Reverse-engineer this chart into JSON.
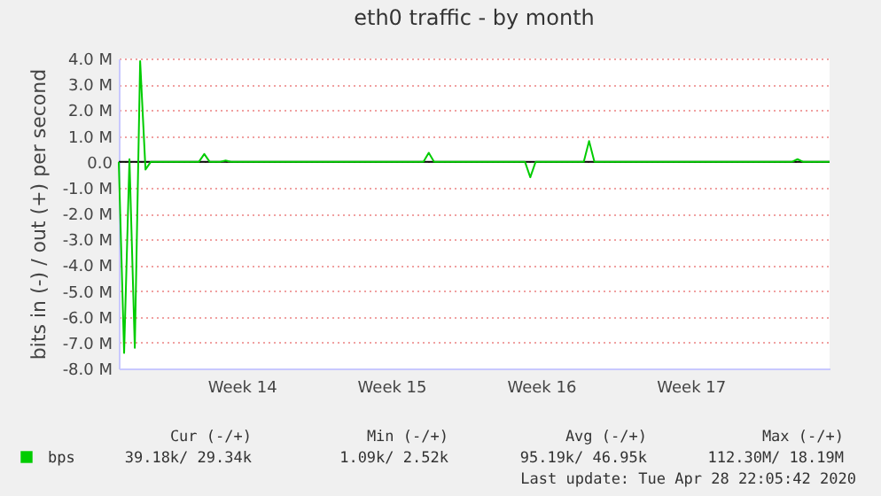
{
  "chart_data": {
    "type": "line",
    "title": "eth0 traffic - by month",
    "ylabel": "bits in (-) / out (+) per second",
    "categories": [
      null,
      null,
      null,
      null,
      null,
      null,
      null,
      null,
      null,
      null,
      null,
      null,
      null,
      null,
      null,
      null,
      null,
      null,
      null,
      null,
      null,
      null,
      null,
      "Week 14",
      null,
      null,
      null,
      null,
      null,
      null,
      null,
      null,
      null,
      null,
      null,
      null,
      null,
      null,
      null,
      null,
      null,
      null,
      null,
      null,
      null,
      null,
      null,
      null,
      null,
      null,
      null,
      "Week 15",
      null,
      null,
      null,
      null,
      null,
      null,
      null,
      null,
      null,
      null,
      null,
      null,
      null,
      null,
      null,
      null,
      null,
      null,
      null,
      null,
      null,
      null,
      null,
      null,
      null,
      null,
      null,
      "Week 16",
      null,
      null,
      null,
      null,
      null,
      null,
      null,
      null,
      null,
      null,
      null,
      null,
      null,
      null,
      null,
      null,
      null,
      null,
      null,
      null,
      null,
      null,
      null,
      null,
      null,
      null,
      null,
      "Week 17",
      null,
      null,
      null,
      null,
      null,
      null,
      null,
      null,
      null,
      null,
      null,
      null,
      null,
      null,
      null,
      null,
      null,
      null,
      null,
      null,
      null,
      null,
      null,
      null,
      null,
      null
    ],
    "ylim": [
      -8,
      4
    ],
    "yticks": [
      {
        "value": -8,
        "label": "-8.0 M"
      },
      {
        "value": -7,
        "label": "-7.0 M"
      },
      {
        "value": -6,
        "label": "-6.0 M"
      },
      {
        "value": -5,
        "label": "-5.0 M"
      },
      {
        "value": -4,
        "label": "-4.0 M"
      },
      {
        "value": -3,
        "label": "-3.0 M"
      },
      {
        "value": -2,
        "label": "-2.0 M"
      },
      {
        "value": -1,
        "label": "-1.0 M"
      },
      {
        "value": 0,
        "label": "0.0"
      },
      {
        "value": 1,
        "label": "1.0 M"
      },
      {
        "value": 2,
        "label": "2.0 M"
      },
      {
        "value": 3,
        "label": "3.0 M"
      },
      {
        "value": 4,
        "label": "4.0 M"
      }
    ],
    "grid": "y",
    "legend": "bottom",
    "series": [
      {
        "name": "bps",
        "color": "#00cc00",
        "values": [
          0,
          -7.4,
          0.1,
          -7.2,
          3.9,
          -0.3,
          0,
          0,
          0,
          0,
          0,
          0,
          0,
          0,
          0,
          0,
          0.3,
          0,
          0,
          0,
          0.05,
          0,
          0,
          0,
          0,
          0,
          0,
          0,
          0,
          0,
          0,
          0,
          0,
          0,
          0,
          0,
          0,
          0,
          0,
          0,
          0,
          0,
          0,
          0,
          0,
          0,
          0,
          0,
          0,
          0,
          0,
          0,
          0,
          0,
          0,
          0,
          0,
          0,
          0.35,
          0,
          0,
          0,
          0,
          0,
          0,
          0,
          0,
          0,
          0,
          0,
          0,
          0,
          0,
          0,
          0,
          0,
          0,
          -0.6,
          0,
          0,
          0,
          0,
          0,
          0,
          0,
          0,
          0,
          0,
          0.8,
          0,
          0,
          0,
          0,
          0,
          0,
          0,
          0,
          0,
          0,
          0,
          0,
          0,
          0,
          0,
          0,
          0,
          0,
          0,
          0,
          0,
          0,
          0,
          0,
          0,
          0,
          0,
          0,
          0,
          0,
          0,
          0,
          0,
          0,
          0,
          0,
          0,
          0,
          0.1,
          0,
          0,
          0,
          0,
          0,
          0
        ]
      }
    ],
    "ref_lines": [
      {
        "axis": "y",
        "value": 0,
        "label": null,
        "color": "#000000",
        "line_style": "solid"
      }
    ],
    "annotations": [
      "Cur (-/+)",
      "Min (-/+)",
      "Avg (-/+)",
      "Max (-/+)",
      "39.18k/  29.34k",
      "1.09k/   2.52k",
      "95.19k/  46.95k",
      "112.30M/  18.19M",
      "Last update: Tue Apr 28 22:05:42 2020"
    ]
  }
}
